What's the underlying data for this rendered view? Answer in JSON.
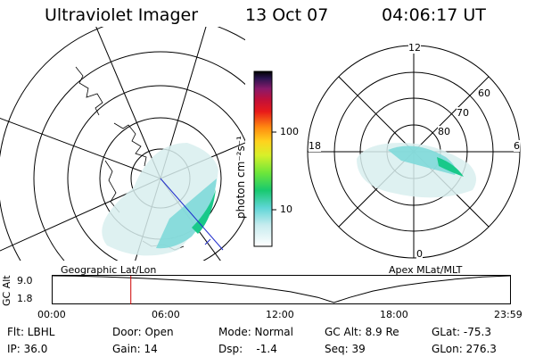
{
  "header": {
    "instrument": "Ultraviolet Imager",
    "date": "13 Oct 07",
    "time": "04:06:17 UT"
  },
  "colorbar": {
    "label": "photon cm⁻²s⁻¹",
    "ticks": [
      "100",
      "10"
    ]
  },
  "polar_plot": {
    "mlt_labels": {
      "top": "12",
      "left": "18",
      "right": "6",
      "bottom": "0"
    },
    "lat_labels": [
      "60",
      "70",
      "80"
    ]
  },
  "timeline": {
    "y_axis_label": "GC Alt",
    "y_ticks": [
      "9.0",
      "1.8"
    ],
    "left_title": "Geographic Lat/Lon",
    "right_title": "Apex MLat/MLT",
    "x_ticks": [
      "00:00",
      "06:00",
      "12:00",
      "18:00",
      "23:59"
    ],
    "current_time_fraction": 0.171,
    "alt_curve": [
      [
        0,
        9.0
      ],
      [
        0.05,
        8.95
      ],
      [
        0.12,
        8.7
      ],
      [
        0.2,
        8.3
      ],
      [
        0.28,
        7.8
      ],
      [
        0.36,
        7.1
      ],
      [
        0.44,
        6.1
      ],
      [
        0.52,
        4.7
      ],
      [
        0.58,
        3.2
      ],
      [
        0.615,
        1.8
      ],
      [
        0.65,
        3.2
      ],
      [
        0.7,
        4.9
      ],
      [
        0.76,
        6.3
      ],
      [
        0.82,
        7.3
      ],
      [
        0.88,
        8.1
      ],
      [
        0.94,
        8.7
      ],
      [
        1.0,
        9.0
      ]
    ]
  },
  "info": {
    "filter": "Flt: LBHL",
    "ip": "IP: 36.0",
    "door": "Door: Open",
    "gain": "Gain: 14",
    "mode": "Mode: Normal",
    "dsp": "Dsp:    -1.4",
    "gc_alt": "GC Alt: 8.9 Re",
    "seq": "Seq: 39",
    "glat": "GLat: -75.3",
    "glon": "GLon: 276.3"
  },
  "colors": {
    "marker": "#cc0000",
    "aurora_low": "#d8eeee",
    "aurora_mid": "#7fd9d9",
    "aurora_high": "#19c98a",
    "sub_track": "#1e2bcc"
  }
}
